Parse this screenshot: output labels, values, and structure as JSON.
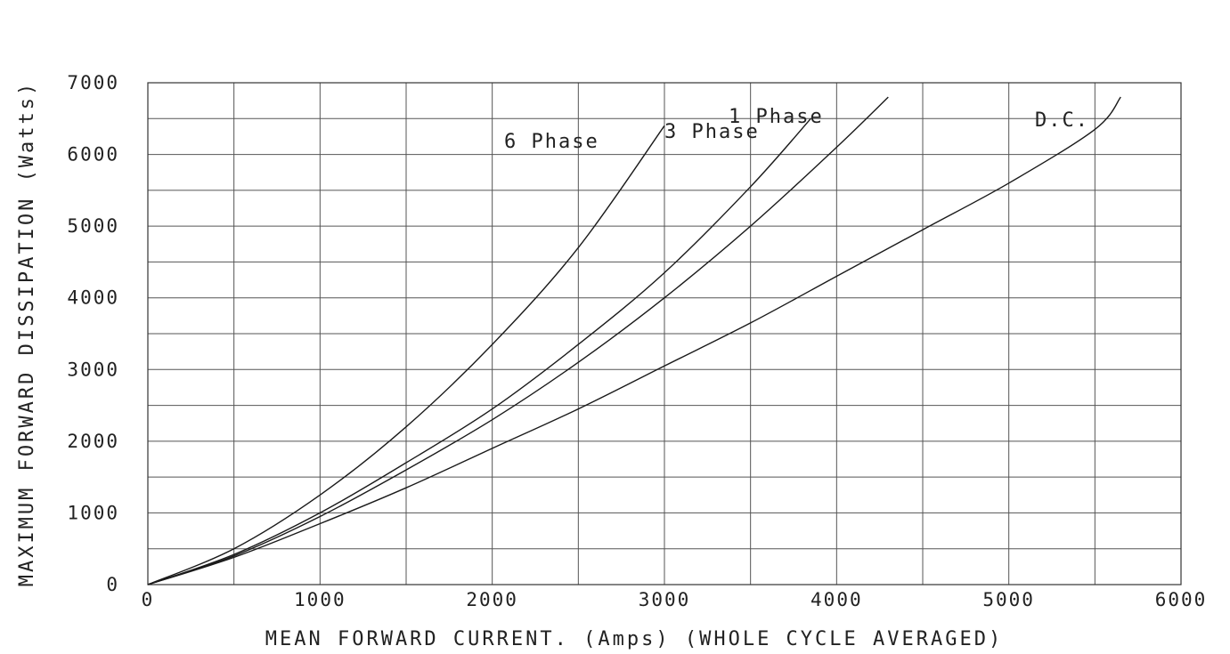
{
  "chart_data": {
    "type": "line",
    "xlabel": "MEAN FORWARD CURRENT. (Amps) (WHOLE CYCLE AVERAGED)",
    "ylabel": "MAXIMUM FORWARD DISSIPATION (Watts)",
    "xlim": [
      0,
      6000
    ],
    "ylim": [
      0,
      7000
    ],
    "x_ticks": [
      "0",
      "1000",
      "2000",
      "3000",
      "4000",
      "5000",
      "6000"
    ],
    "y_ticks": [
      "0",
      "1000",
      "2000",
      "3000",
      "4000",
      "5000",
      "6000",
      "7000"
    ],
    "x_tick_values": [
      0,
      1000,
      2000,
      3000,
      4000,
      5000,
      6000
    ],
    "y_tick_values": [
      0,
      1000,
      2000,
      3000,
      4000,
      5000,
      6000,
      7000
    ],
    "x_grid_step": 500,
    "y_grid_step": 500,
    "grid": true,
    "series": [
      {
        "name": "6 Phase",
        "x": [
          0,
          500,
          1000,
          1500,
          2000,
          2500,
          3000
        ],
        "y": [
          0,
          500,
          1250,
          2200,
          3350,
          4700,
          6400
        ]
      },
      {
        "name": "3 Phase",
        "x": [
          0,
          500,
          1000,
          1500,
          2000,
          2500,
          3000,
          3500,
          3850
        ],
        "y": [
          0,
          420,
          1000,
          1700,
          2450,
          3350,
          4350,
          5550,
          6500
        ]
      },
      {
        "name": "1 Phase",
        "x": [
          0,
          500,
          1000,
          1500,
          2000,
          2500,
          3000,
          3500,
          4000,
          4300
        ],
        "y": [
          0,
          400,
          950,
          1600,
          2300,
          3100,
          4000,
          5000,
          6100,
          6800
        ]
      },
      {
        "name": "D.C.",
        "x": [
          0,
          500,
          1000,
          1500,
          2000,
          2500,
          3000,
          3500,
          4000,
          4500,
          5000,
          5500,
          5650
        ],
        "y": [
          0,
          380,
          850,
          1350,
          1900,
          2450,
          3050,
          3650,
          4300,
          4950,
          5600,
          6350,
          6800
        ]
      }
    ],
    "annotations": [
      {
        "text": "6 Phase",
        "series": "6 Phase"
      },
      {
        "text": "3 Phase",
        "series": "3 Phase"
      },
      {
        "text": "1 Phase",
        "series": "1 Phase"
      },
      {
        "text": "D.C.",
        "series": "D.C."
      }
    ]
  }
}
